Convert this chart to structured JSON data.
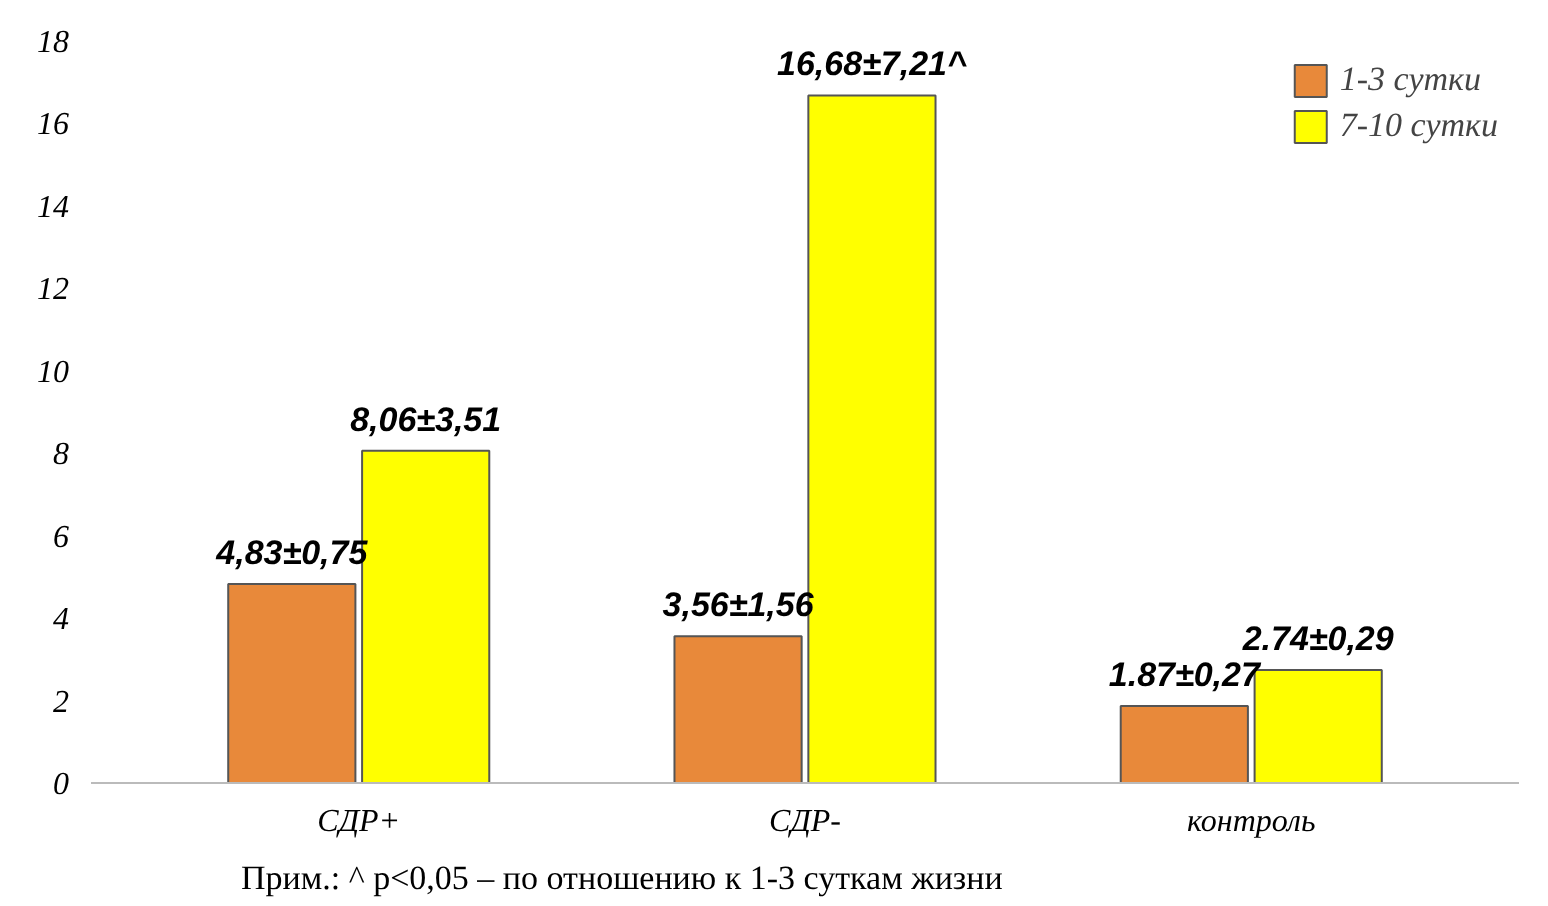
{
  "chart_data": {
    "type": "bar",
    "categories": [
      "СДР+",
      "СДР-",
      "контроль"
    ],
    "series": [
      {
        "name": "1-3 сутки",
        "color": "#e8893a",
        "values": [
          4.83,
          3.56,
          1.87
        ],
        "value_labels": [
          "4,83±0,75",
          "3,56±1,56",
          "1.87±0,27"
        ]
      },
      {
        "name": "7-10 сутки",
        "color": "#ffff00",
        "values": [
          8.06,
          16.68,
          2.74
        ],
        "value_labels": [
          "8,06±3,51",
          "16,68±7,21^",
          "2.74±0,29"
        ]
      }
    ],
    "ylim": [
      0,
      18
    ],
    "yticks": [
      0,
      2,
      4,
      6,
      8,
      10,
      12,
      14,
      16,
      18
    ],
    "grid": false,
    "legend": "top right",
    "annotations": [
      "Прим.: ^ p<0,05 – по отношению к 1-3 суткам жизни"
    ]
  }
}
